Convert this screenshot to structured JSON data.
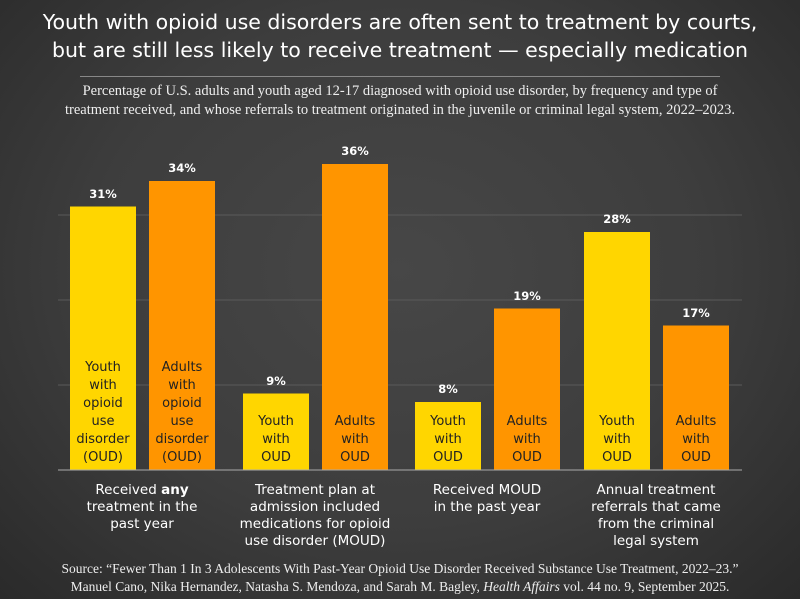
{
  "title_line1": "Youth with opioid use disorders are often sent to treatment by courts,",
  "title_line2": "but are still less likely to receive treatment — especially medication",
  "subtitle_line1": "Percentage of U.S. adults and youth aged 12-17 diagnosed with opioid use disorder, by frequency and type of",
  "subtitle_line2": "treatment received, and whose referrals to treatment originated in the juvenile or criminal legal system, 2022–2023.",
  "source_line1": "Source: “Fewer Than 1 In 3 Adolescents With Past-Year Opioid Use Disorder Received Substance Use Treatment, 2022–23.”",
  "source_line2_prefix": "Manuel Cano, Nika Hernandez, Natasha S. Mendoza, and Sarah M. Bagley, ",
  "source_journal": "Health Affairs",
  "source_line2_suffix": " vol. 44 no. 9, September 2025.",
  "colors": {
    "youth": "#FFD600",
    "adults": "#FF9500",
    "background": "#3f3f3f",
    "grid": "#5a5a5a"
  },
  "chart_data": {
    "type": "bar",
    "ylim": [
      0,
      40
    ],
    "grid": true,
    "gridlines": [
      10,
      20,
      30
    ],
    "categories": [
      {
        "pre": "Received ",
        "bold": "any",
        "post": "",
        "line2": "treatment in the",
        "line3": "past year",
        "line4": ""
      },
      {
        "pre": "Treatment plan at",
        "bold": "",
        "post": "",
        "line2": "admission included",
        "line3": "medications for opioid",
        "line4": "use disorder (MOUD)"
      },
      {
        "pre": "Received MOUD",
        "bold": "",
        "post": "",
        "line2": "in the past year",
        "line3": "",
        "line4": ""
      },
      {
        "pre": "Annual treatment",
        "bold": "",
        "post": "",
        "line2": "referrals that came",
        "line3": "from the criminal",
        "line4": "legal system"
      }
    ],
    "series": [
      {
        "key": "youth",
        "values": [
          31,
          9,
          8,
          28
        ],
        "value_labels": [
          "31%",
          "9%",
          "8%",
          "28%"
        ],
        "bar_labels": [
          [
            "Youth",
            "with",
            "opioid",
            "use",
            "disorder",
            "(OUD)"
          ],
          [
            "Youth",
            "with",
            "OUD"
          ],
          [
            "Youth",
            "with",
            "OUD"
          ],
          [
            "Youth",
            "with",
            "OUD"
          ]
        ]
      },
      {
        "key": "adults",
        "values": [
          34,
          36,
          19,
          17
        ],
        "value_labels": [
          "34%",
          "36%",
          "19%",
          "17%"
        ],
        "bar_labels": [
          [
            "Adults",
            "with",
            "opioid",
            "use",
            "disorder",
            "(OUD)"
          ],
          [
            "Adults",
            "with",
            "OUD"
          ],
          [
            "Adults",
            "with",
            "OUD"
          ],
          [
            "Adults",
            "with",
            "OUD"
          ]
        ]
      }
    ]
  }
}
